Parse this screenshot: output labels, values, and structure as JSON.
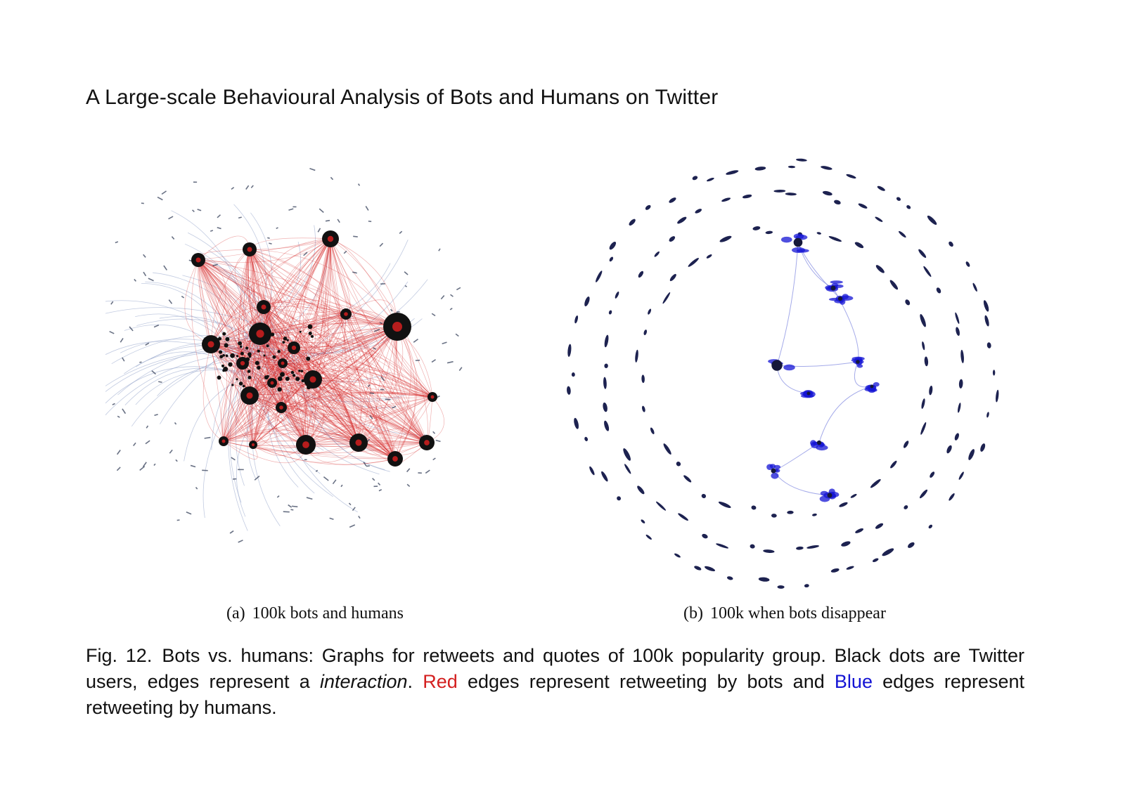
{
  "header": {
    "running_title": "A Large-scale Behavioural Analysis of Bots and Humans on Twitter"
  },
  "figure": {
    "subfigures": [
      {
        "label": "(a)",
        "caption": "100k bots and humans"
      },
      {
        "label": "(b)",
        "caption": "100k when bots disappear"
      }
    ],
    "caption": {
      "number": "Fig. 12.",
      "part1": "Bots vs. humans: Graphs for retweets and quotes of 100k popularity group. Black dots are Twitter users, edges represent a ",
      "interaction": "interaction",
      "part2": ". ",
      "red_word": "Red",
      "part3": " edges represent retweeting by bots and ",
      "blue_word": "Blue",
      "part4": " edges represent retweeting by humans."
    }
  },
  "colors": {
    "node": "#111111",
    "bot_edge": "#d42020",
    "human_edge": "#1414d4",
    "human_edge_faint": "#8fa0c8"
  }
}
